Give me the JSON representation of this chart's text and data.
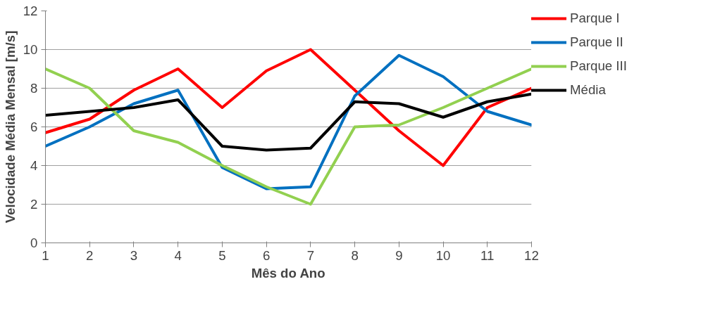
{
  "chart_data": {
    "type": "line",
    "xlabel": "Mês do Ano",
    "ylabel": "Velocidade Média Mensal [m/s]",
    "x": [
      1,
      2,
      3,
      4,
      5,
      6,
      7,
      8,
      9,
      10,
      11,
      12
    ],
    "xlim": [
      1,
      12
    ],
    "xticks": [
      1,
      2,
      3,
      4,
      5,
      6,
      7,
      8,
      9,
      10,
      11,
      12
    ],
    "ylim": [
      0,
      12
    ],
    "yticks": [
      0,
      2,
      4,
      6,
      8,
      10,
      12
    ],
    "grid": "y",
    "legend": "right",
    "line_style": "solid",
    "series": [
      {
        "name": "Parque I",
        "color": "#ff0000",
        "values": [
          5.7,
          6.4,
          7.9,
          9.0,
          7.0,
          8.9,
          10.0,
          7.9,
          5.8,
          4.0,
          7.0,
          8.0
        ]
      },
      {
        "name": "Parque II",
        "color": "#0070c0",
        "values": [
          5.0,
          6.0,
          7.2,
          7.9,
          3.9,
          2.8,
          2.9,
          7.6,
          9.7,
          8.6,
          6.8,
          6.1
        ]
      },
      {
        "name": "Parque III",
        "color": "#92d050",
        "values": [
          9.0,
          8.0,
          5.8,
          5.2,
          4.0,
          2.9,
          2.0,
          6.0,
          6.1,
          7.0,
          8.0,
          9.0
        ]
      },
      {
        "name": "Média",
        "color": "#000000",
        "values": [
          6.6,
          6.8,
          7.0,
          7.4,
          5.0,
          4.8,
          4.9,
          7.3,
          7.2,
          6.5,
          7.3,
          7.7
        ]
      }
    ]
  }
}
